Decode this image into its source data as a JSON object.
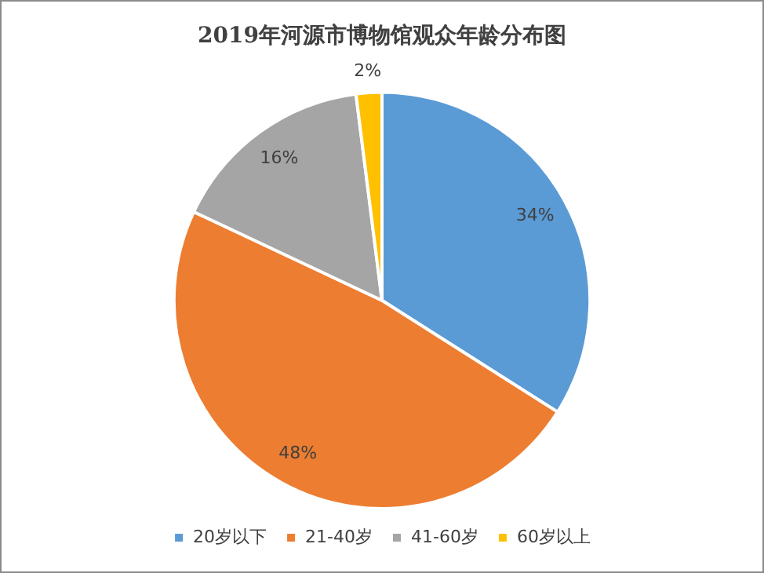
{
  "chart_data": {
    "type": "pie",
    "title": "2019年河源市博物馆观众年龄分布图",
    "categories": [
      "20岁以下",
      "21-40岁",
      "41-60岁",
      "60岁以上"
    ],
    "values": [
      34,
      48,
      16,
      2
    ],
    "colors": [
      "#5b9bd5",
      "#ed7d31",
      "#a5a5a5",
      "#ffc000"
    ],
    "value_labels": [
      "34%",
      "48%",
      "16%",
      "2%"
    ],
    "legend": "bottom"
  }
}
